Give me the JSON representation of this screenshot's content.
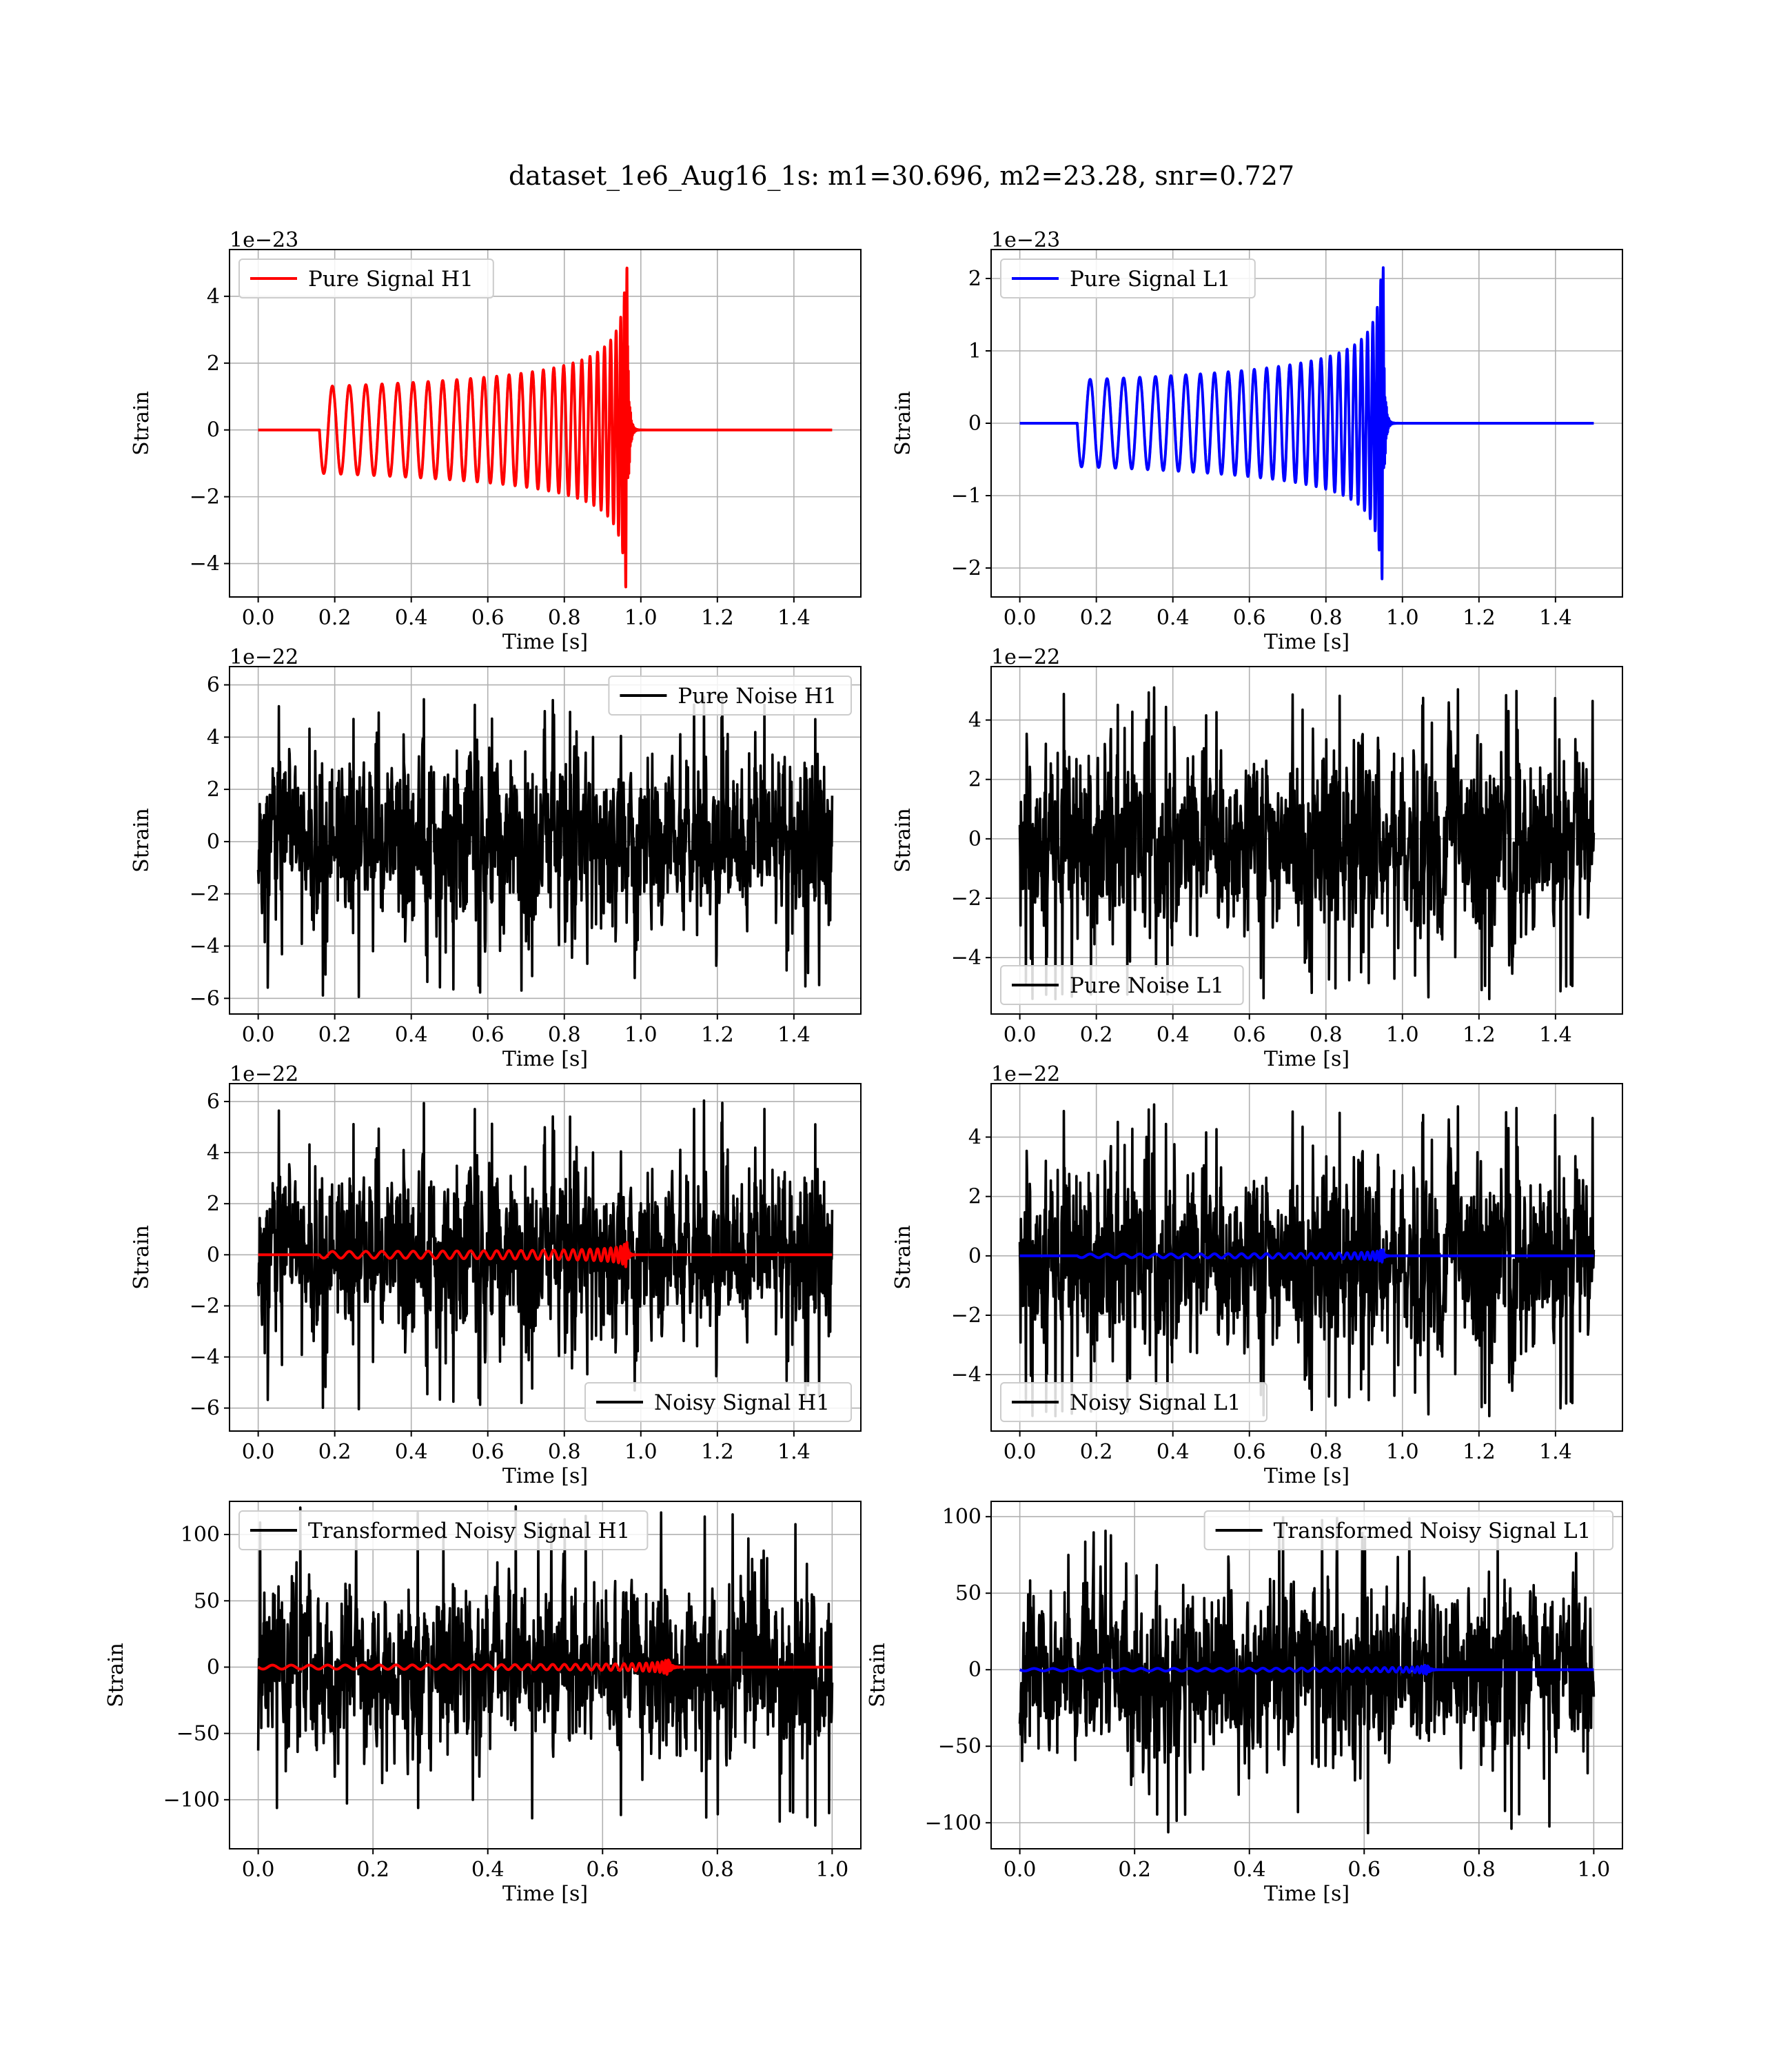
{
  "figure_title": "dataset_1e6_Aug16_1s: m1=30.696, m2=23.28, snr=0.727",
  "colors": {
    "h1_signal": "#ff0000",
    "l1_signal": "#0000ff",
    "noise": "#000000",
    "grid": "#b0b0b0"
  },
  "chart_data": [
    {
      "type": "line",
      "id": "pure-signal-h1",
      "xlabel": "Time [s]",
      "ylabel": "Strain",
      "offset_text": "1e−23",
      "xlim": [
        -0.075,
        1.575
      ],
      "ylim": [
        -5.0,
        5.4
      ],
      "xticks": [
        0.0,
        0.2,
        0.4,
        0.6,
        0.8,
        1.0,
        1.2,
        1.4
      ],
      "xtick_labels": [
        "0.0",
        "0.2",
        "0.4",
        "0.6",
        "0.8",
        "1.0",
        "1.2",
        "1.4"
      ],
      "yticks": [
        -4,
        -2,
        0,
        2,
        4
      ],
      "ytick_labels": [
        "−4",
        "−2",
        "0",
        "2",
        "4"
      ],
      "legend_position": "upper-left",
      "series": [
        {
          "name": "Pure Signal H1",
          "color": "#ff0000",
          "kind": "chirp",
          "t_start": 0.16,
          "t_merger": 0.965,
          "t_end": 1.5,
          "amp_start": 1.3,
          "amp_peak": 5.0,
          "amp_min": -4.7,
          "f_start": 22,
          "f_end": 220
        }
      ]
    },
    {
      "type": "line",
      "id": "pure-signal-l1",
      "xlabel": "Time [s]",
      "ylabel": "Strain",
      "offset_text": "1e−23",
      "xlim": [
        -0.075,
        1.575
      ],
      "ylim": [
        -2.4,
        2.4
      ],
      "xticks": [
        0.0,
        0.2,
        0.4,
        0.6,
        0.8,
        1.0,
        1.2,
        1.4
      ],
      "xtick_labels": [
        "0.0",
        "0.2",
        "0.4",
        "0.6",
        "0.8",
        "1.0",
        "1.2",
        "1.4"
      ],
      "yticks": [
        -2,
        -1,
        0,
        1,
        2
      ],
      "ytick_labels": [
        "−2",
        "−1",
        "0",
        "1",
        "2"
      ],
      "legend_position": "upper-left",
      "series": [
        {
          "name": "Pure Signal L1",
          "color": "#0000ff",
          "kind": "chirp",
          "t_start": 0.15,
          "t_merger": 0.95,
          "t_end": 1.5,
          "amp_start": 0.6,
          "amp_peak": 2.15,
          "amp_min": -2.25,
          "f_start": 22,
          "f_end": 220
        }
      ]
    },
    {
      "type": "line",
      "id": "pure-noise-h1",
      "xlabel": "Time [s]",
      "ylabel": "Strain",
      "offset_text": "1e−22",
      "xlim": [
        -0.075,
        1.575
      ],
      "ylim": [
        -6.6,
        6.7
      ],
      "xticks": [
        0.0,
        0.2,
        0.4,
        0.6,
        0.8,
        1.0,
        1.2,
        1.4
      ],
      "xtick_labels": [
        "0.0",
        "0.2",
        "0.4",
        "0.6",
        "0.8",
        "1.0",
        "1.2",
        "1.4"
      ],
      "yticks": [
        -6,
        -4,
        -2,
        0,
        2,
        4,
        6
      ],
      "ytick_labels": [
        "−6",
        "−4",
        "−2",
        "0",
        "2",
        "4",
        "6"
      ],
      "legend_position": "upper-right",
      "series": [
        {
          "name": "Pure Noise H1",
          "color": "#000000",
          "kind": "noise",
          "t_start": 0.0,
          "t_end": 1.5,
          "sigma": 1.55,
          "max": 5.6,
          "min": -6.1,
          "seed": 11
        }
      ]
    },
    {
      "type": "line",
      "id": "pure-noise-l1",
      "xlabel": "Time [s]",
      "ylabel": "Strain",
      "offset_text": "1e−22",
      "xlim": [
        -0.075,
        1.575
      ],
      "ylim": [
        -5.9,
        5.8
      ],
      "xticks": [
        0.0,
        0.2,
        0.4,
        0.6,
        0.8,
        1.0,
        1.2,
        1.4
      ],
      "xtick_labels": [
        "0.0",
        "0.2",
        "0.4",
        "0.6",
        "0.8",
        "1.0",
        "1.2",
        "1.4"
      ],
      "yticks": [
        -4,
        -2,
        0,
        2,
        4
      ],
      "ytick_labels": [
        "−4",
        "−2",
        "0",
        "2",
        "4"
      ],
      "legend_position": "lower-left",
      "series": [
        {
          "name": "Pure Noise L1",
          "color": "#000000",
          "kind": "noise",
          "t_start": 0.0,
          "t_end": 1.5,
          "sigma": 1.45,
          "max": 5.1,
          "min": -5.4,
          "seed": 23
        }
      ]
    },
    {
      "type": "line",
      "id": "noisy-signal-h1",
      "xlabel": "Time [s]",
      "ylabel": "Strain",
      "offset_text": "1e−22",
      "xlim": [
        -0.075,
        1.575
      ],
      "ylim": [
        -6.9,
        6.7
      ],
      "xticks": [
        0.0,
        0.2,
        0.4,
        0.6,
        0.8,
        1.0,
        1.2,
        1.4
      ],
      "xtick_labels": [
        "0.0",
        "0.2",
        "0.4",
        "0.6",
        "0.8",
        "1.0",
        "1.2",
        "1.4"
      ],
      "yticks": [
        -6,
        -4,
        -2,
        0,
        2,
        4,
        6
      ],
      "ytick_labels": [
        "−6",
        "−4",
        "−2",
        "0",
        "2",
        "4",
        "6"
      ],
      "legend_position": "lower-right",
      "series": [
        {
          "name": "Noisy Signal H1",
          "color": "#000000",
          "kind": "noise",
          "t_start": 0.0,
          "t_end": 1.5,
          "sigma": 1.55,
          "max": 6.1,
          "min": -6.2,
          "seed": 11
        },
        {
          "name": "",
          "color": "#ff0000",
          "kind": "chirp",
          "t_start": 0.16,
          "t_merger": 0.965,
          "t_end": 1.5,
          "amp_start": 0.13,
          "amp_peak": 0.5,
          "amp_min": -0.47,
          "f_start": 22,
          "f_end": 220
        }
      ]
    },
    {
      "type": "line",
      "id": "noisy-signal-l1",
      "xlabel": "Time [s]",
      "ylabel": "Strain",
      "offset_text": "1e−22",
      "xlim": [
        -0.075,
        1.575
      ],
      "ylim": [
        -5.9,
        5.8
      ],
      "xticks": [
        0.0,
        0.2,
        0.4,
        0.6,
        0.8,
        1.0,
        1.2,
        1.4
      ],
      "xtick_labels": [
        "0.0",
        "0.2",
        "0.4",
        "0.6",
        "0.8",
        "1.0",
        "1.2",
        "1.4"
      ],
      "yticks": [
        -4,
        -2,
        0,
        2,
        4
      ],
      "ytick_labels": [
        "−4",
        "−2",
        "0",
        "2",
        "4"
      ],
      "legend_position": "lower-left",
      "series": [
        {
          "name": "Noisy Signal L1",
          "color": "#000000",
          "kind": "noise",
          "t_start": 0.0,
          "t_end": 1.5,
          "sigma": 1.45,
          "max": 5.1,
          "min": -5.4,
          "seed": 23
        },
        {
          "name": "",
          "color": "#0000ff",
          "kind": "chirp",
          "t_start": 0.15,
          "t_merger": 0.95,
          "t_end": 1.5,
          "amp_start": 0.06,
          "amp_peak": 0.21,
          "amp_min": -0.22,
          "f_start": 22,
          "f_end": 220
        }
      ]
    },
    {
      "type": "line",
      "id": "transformed-noisy-signal-h1",
      "xlabel": "Time [s]",
      "ylabel": "Strain",
      "offset_text": "",
      "xlim": [
        -0.05,
        1.05
      ],
      "ylim": [
        -137,
        125
      ],
      "xticks": [
        0.0,
        0.2,
        0.4,
        0.6,
        0.8,
        1.0
      ],
      "xtick_labels": [
        "0.0",
        "0.2",
        "0.4",
        "0.6",
        "0.8",
        "1.0"
      ],
      "yticks": [
        -100,
        -50,
        0,
        50,
        100
      ],
      "ytick_labels": [
        "−100",
        "−50",
        "0",
        "50",
        "100"
      ],
      "legend_position": "upper-left",
      "series": [
        {
          "name": "Transformed Noisy Signal H1",
          "color": "#000000",
          "kind": "noise",
          "t_start": 0.0,
          "t_end": 1.0,
          "sigma": 28,
          "max": 122,
          "min": -122,
          "seed": 37
        },
        {
          "name": "",
          "color": "#ff0000",
          "kind": "chirp",
          "t_start": 0.0,
          "t_merger": 0.715,
          "t_end": 1.0,
          "amp_start": 1.5,
          "amp_peak": 10,
          "amp_min": -9,
          "f_start": 30,
          "f_end": 300
        }
      ]
    },
    {
      "type": "line",
      "id": "transformed-noisy-signal-l1",
      "xlabel": "Time [s]",
      "ylabel": "Strain",
      "offset_text": "",
      "xlim": [
        -0.05,
        1.05
      ],
      "ylim": [
        -117,
        110
      ],
      "xticks": [
        0.0,
        0.2,
        0.4,
        0.6,
        0.8,
        1.0
      ],
      "xtick_labels": [
        "0.0",
        "0.2",
        "0.4",
        "0.6",
        "0.8",
        "1.0"
      ],
      "yticks": [
        -100,
        -50,
        0,
        50,
        100
      ],
      "ytick_labels": [
        "−100",
        "−50",
        "0",
        "50",
        "100"
      ],
      "legend_position": "upper-right",
      "series": [
        {
          "name": "Transformed Noisy Signal L1",
          "color": "#000000",
          "kind": "noise",
          "t_start": 0.0,
          "t_end": 1.0,
          "sigma": 26,
          "max": 100,
          "min": -107,
          "seed": 53
        },
        {
          "name": "",
          "color": "#0000ff",
          "kind": "chirp",
          "t_start": 0.0,
          "t_merger": 0.71,
          "t_end": 1.0,
          "amp_start": 0.8,
          "amp_peak": 5,
          "amp_min": -5,
          "f_start": 30,
          "f_end": 300
        }
      ]
    }
  ]
}
